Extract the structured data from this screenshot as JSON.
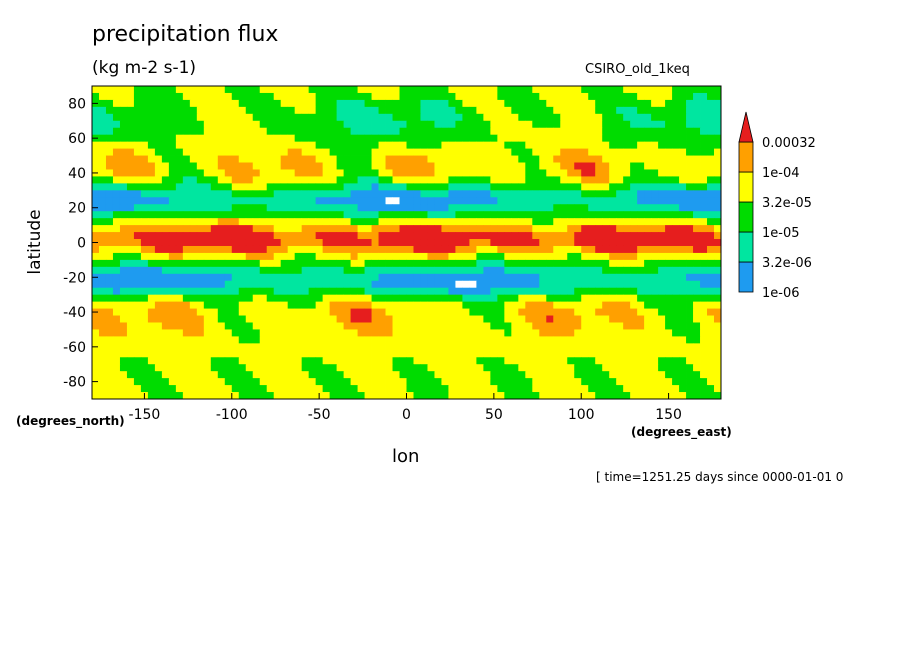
{
  "chart_data": {
    "type": "heatmap",
    "title": "precipitation flux",
    "units": "(kg m-2 s-1)",
    "model": "CSIRO_old_1keq",
    "xlabel": "lon",
    "ylabel": "latitude",
    "x_unit_label": "(degrees_east)",
    "y_unit_label": "(degrees_north)",
    "xlim": [
      -180,
      180
    ],
    "ylim": [
      -90,
      90
    ],
    "x_ticks": [
      -150,
      -100,
      -50,
      0,
      50,
      100,
      150
    ],
    "y_ticks": [
      80,
      60,
      40,
      20,
      0,
      -20,
      -40,
      -60,
      -80
    ],
    "colorbar": {
      "levels": [
        "1e-06",
        "3.2e-06",
        "1e-05",
        "3.2e-05",
        "1e-04",
        "0.00032"
      ],
      "colors": [
        "#ffffff",
        "#1e9bf0",
        "#00e6a0",
        "#00dc00",
        "#ffff00",
        "#ffa000",
        "#e61e1e"
      ]
    },
    "timestamp": "[ time=1251.25 days since 0000-01-01 0"
  }
}
